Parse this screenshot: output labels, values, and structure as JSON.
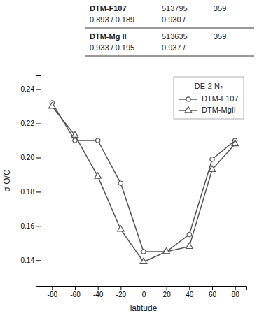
{
  "chart_data": {
    "type": "line",
    "x": [
      -80,
      -60,
      -40,
      -20,
      0,
      20,
      40,
      60,
      80
    ],
    "series": [
      {
        "name": "DTM-F107",
        "color": "#555555",
        "marker": "circle",
        "line_style": "solid",
        "values": [
          0.232,
          0.21,
          0.21,
          0.185,
          0.145,
          0.145,
          0.155,
          0.199,
          0.21
        ]
      },
      {
        "name": "DTM-MgII",
        "color": "#555555",
        "marker": "triangle",
        "line_style": "solid",
        "values": [
          0.23,
          0.213,
          0.189,
          0.158,
          0.139,
          0.145,
          0.148,
          0.193,
          0.208
        ]
      }
    ],
    "x_label": "latitude",
    "y_label": "σ O/C",
    "xlim": [
      -90,
      90
    ],
    "ylim": [
      0.125,
      0.248
    ],
    "xticks": [
      -80,
      -60,
      -40,
      -20,
      0,
      20,
      40,
      60,
      80
    ],
    "yticks": [
      0.14,
      0.16,
      0.18,
      {
        "value": 0.2,
        "label": "0.20"
      },
      0.22,
      0.24
    ],
    "legend": "upper right",
    "legend_title": "DE-2 N₂",
    "grid": false,
    "annotations": [
      [
        "DTM-F107",
        "513795",
        "359"
      ],
      [
        "0.893 / 0.189",
        "0.930 /"
      ],
      [
        "DTM-Mg II",
        "513635",
        "359"
      ],
      [
        "0.933 / 0.195",
        "0.937 /"
      ]
    ]
  }
}
